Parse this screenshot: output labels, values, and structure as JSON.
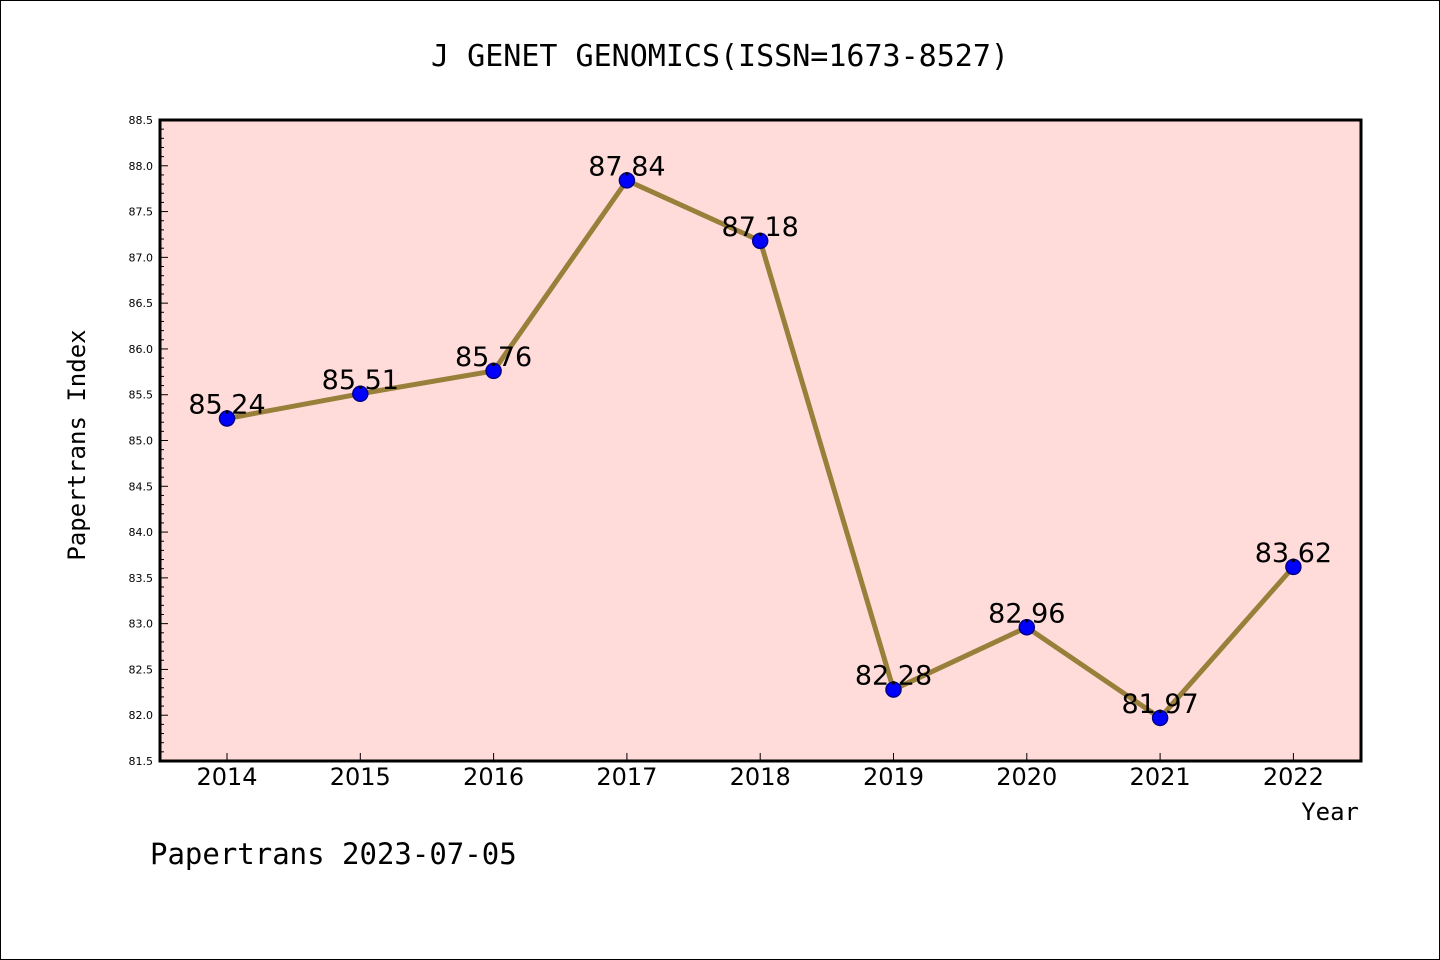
{
  "chart_data": {
    "type": "line",
    "title": "J GENET GENOMICS(ISSN=1673-8527)",
    "xlabel": "Year",
    "ylabel": "Papertrans Index",
    "categories": [
      "2014",
      "2015",
      "2016",
      "2017",
      "2018",
      "2019",
      "2020",
      "2021",
      "2022"
    ],
    "series": [
      {
        "name": "Papertrans Index",
        "values": [
          85.24,
          85.51,
          85.76,
          87.84,
          87.18,
          82.28,
          82.96,
          81.97,
          83.62
        ],
        "labels": [
          "85.24",
          "85.51",
          "85.76",
          "87.84",
          "87.18",
          "82.28",
          "82.96",
          "81.97",
          "83.62"
        ]
      }
    ],
    "ylim": [
      81.5,
      88.5
    ],
    "yticks": [
      "81.5",
      "82.0",
      "82.5",
      "83.0",
      "83.5",
      "84.0",
      "84.5",
      "85.0",
      "85.5",
      "86.0",
      "86.5",
      "87.0",
      "87.5",
      "88.0",
      "88.5"
    ],
    "grid": false,
    "footer": "Papertrans 2023-07-05",
    "colors": {
      "plot_background": "#ffdcda",
      "line": "#9a7f3a",
      "marker": "#0000ff",
      "marker_edge": "#00008b"
    }
  }
}
